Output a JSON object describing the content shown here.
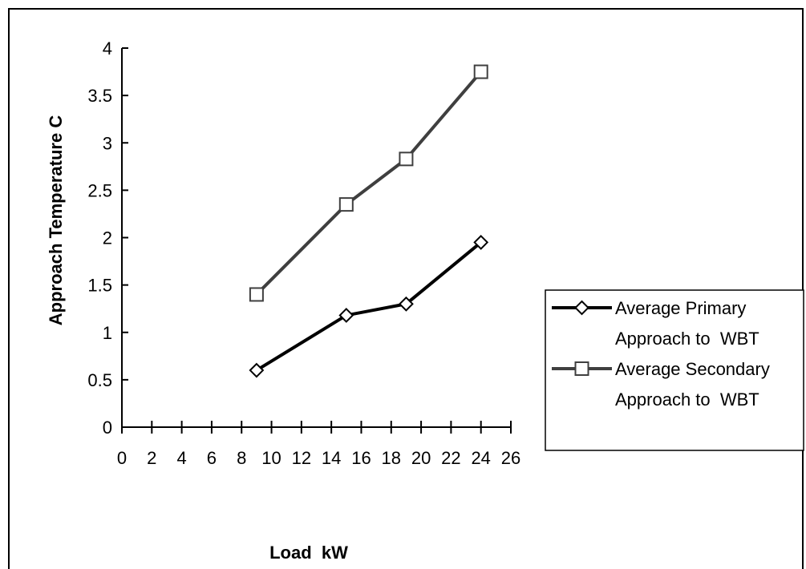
{
  "chart_data": {
    "type": "line",
    "title": "",
    "xlabel": "Load  kW",
    "ylabel": "Approach Temperature C",
    "xlim": [
      0,
      26
    ],
    "ylim": [
      0,
      4
    ],
    "x_ticks": [
      "0",
      "2",
      "4",
      "6",
      "8",
      "10",
      "12",
      "14",
      "16",
      "18",
      "20",
      "22",
      "24",
      "26"
    ],
    "y_ticks": [
      "0",
      "0.5",
      "1",
      "1.5",
      "2",
      "2.5",
      "3",
      "3.5",
      "4"
    ],
    "grid": false,
    "legend_position": "right",
    "series": [
      {
        "name": "Average Primary Approach to  WBT",
        "legend_lines": [
          "Average Primary",
          "Approach to  WBT"
        ],
        "marker": "diamond",
        "color": "#000000",
        "x": [
          9,
          15,
          19,
          24
        ],
        "y": [
          0.6,
          1.18,
          1.3,
          1.95
        ]
      },
      {
        "name": "Average Secondary Approach to  WBT",
        "legend_lines": [
          "Average Secondary",
          "Approach to  WBT"
        ],
        "marker": "square",
        "color": "#3f3f3f",
        "x": [
          9,
          15,
          19,
          24
        ],
        "y": [
          1.4,
          2.35,
          2.83,
          3.75
        ]
      }
    ]
  }
}
